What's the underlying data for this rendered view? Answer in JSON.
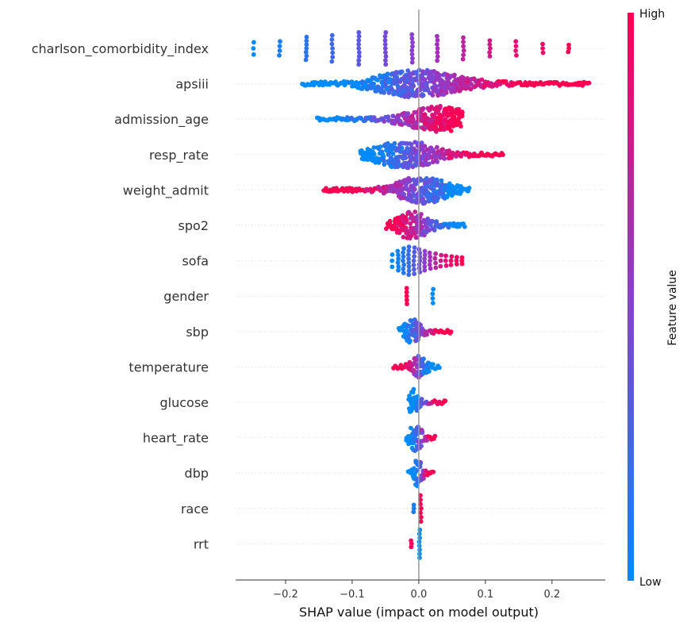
{
  "chart_data": {
    "type": "scatter",
    "subtype": "shap-beeswarm",
    "xlabel": "SHAP value (impact on model output)",
    "xlim": [
      -0.275,
      0.28
    ],
    "xticks": [
      -0.2,
      -0.1,
      0.0,
      0.1,
      0.2
    ],
    "xtick_labels": [
      "−0.2",
      "−0.1",
      "0.0",
      "0.1",
      "0.2"
    ],
    "colorbar": {
      "title": "Feature value",
      "high_label": "High",
      "low_label": "Low",
      "low_color": "#008bfb",
      "high_color": "#ff0052"
    },
    "grid": "horizontal-dotted",
    "features": [
      {
        "name": "charlson_comorbidity_index",
        "kind": "discrete",
        "points": [
          {
            "x": -0.248,
            "v": 0.0,
            "spread": 0.35
          },
          {
            "x": -0.209,
            "v": 0.08,
            "spread": 0.4
          },
          {
            "x": -0.169,
            "v": 0.16,
            "spread": 0.65
          },
          {
            "x": -0.13,
            "v": 0.24,
            "spread": 0.75
          },
          {
            "x": -0.09,
            "v": 0.33,
            "spread": 0.92
          },
          {
            "x": -0.05,
            "v": 0.42,
            "spread": 0.92
          },
          {
            "x": -0.01,
            "v": 0.5,
            "spread": 0.8
          },
          {
            "x": 0.028,
            "v": 0.6,
            "spread": 0.7
          },
          {
            "x": 0.067,
            "v": 0.7,
            "spread": 0.62
          },
          {
            "x": 0.107,
            "v": 0.8,
            "spread": 0.45
          },
          {
            "x": 0.146,
            "v": 0.88,
            "spread": 0.4
          },
          {
            "x": 0.186,
            "v": 0.94,
            "spread": 0.25
          },
          {
            "x": 0.225,
            "v": 1.0,
            "spread": 0.2
          }
        ]
      },
      {
        "name": "apsiii",
        "kind": "continuous",
        "min": -0.175,
        "max": 0.258,
        "peak": 0.0,
        "width": 0.075,
        "height": 0.8,
        "cmin": -0.09,
        "cmax": 0.14
      },
      {
        "name": "admission_age",
        "kind": "continuous",
        "min": -0.152,
        "max": 0.065,
        "peak": 0.03,
        "width": 0.055,
        "height": 0.75,
        "cmin": -0.12,
        "cmax": 0.045
      },
      {
        "name": "resp_rate",
        "kind": "continuous",
        "min": -0.088,
        "max": 0.128,
        "peak": -0.02,
        "width": 0.055,
        "height": 0.8,
        "cmin": -0.06,
        "cmax": 0.08
      },
      {
        "name": "weight_admit",
        "kind": "continuous",
        "min": -0.142,
        "max": 0.078,
        "peak": 0.005,
        "width": 0.045,
        "height": 0.8,
        "cmin": 0.055,
        "cmax": -0.09
      },
      {
        "name": "spo2",
        "kind": "continuous",
        "min": -0.048,
        "max": 0.072,
        "peak": -0.01,
        "width": 0.028,
        "height": 0.8,
        "cmin": 0.05,
        "cmax": -0.03
      },
      {
        "name": "sofa",
        "kind": "discrete",
        "points": [
          {
            "x": -0.04,
            "v": 0.0,
            "spread": 0.35
          },
          {
            "x": -0.031,
            "v": 0.06,
            "spread": 0.55
          },
          {
            "x": -0.023,
            "v": 0.12,
            "spread": 0.7
          },
          {
            "x": -0.015,
            "v": 0.2,
            "spread": 0.8
          },
          {
            "x": -0.007,
            "v": 0.3,
            "spread": 0.75
          },
          {
            "x": 0.001,
            "v": 0.4,
            "spread": 0.65
          },
          {
            "x": 0.009,
            "v": 0.5,
            "spread": 0.55
          },
          {
            "x": 0.017,
            "v": 0.6,
            "spread": 0.45
          },
          {
            "x": 0.025,
            "v": 0.7,
            "spread": 0.4
          },
          {
            "x": 0.033,
            "v": 0.8,
            "spread": 0.32
          },
          {
            "x": 0.041,
            "v": 0.86,
            "spread": 0.28
          },
          {
            "x": 0.049,
            "v": 0.92,
            "spread": 0.24
          },
          {
            "x": 0.057,
            "v": 0.96,
            "spread": 0.2
          },
          {
            "x": 0.065,
            "v": 1.0,
            "spread": 0.18
          }
        ]
      },
      {
        "name": "gender",
        "kind": "discrete",
        "points": [
          {
            "x": -0.018,
            "v": 1.0,
            "spread": 0.45
          },
          {
            "x": 0.021,
            "v": 0.0,
            "spread": 0.4
          }
        ]
      },
      {
        "name": "sbp",
        "kind": "continuous",
        "min": -0.03,
        "max": 0.05,
        "peak": -0.01,
        "width": 0.016,
        "height": 0.75,
        "cmin": -0.02,
        "cmax": 0.03
      },
      {
        "name": "temperature",
        "kind": "continuous",
        "min": -0.038,
        "max": 0.032,
        "peak": 0.0,
        "width": 0.014,
        "height": 0.65,
        "cmin": 0.015,
        "cmax": -0.02
      },
      {
        "name": "glucose",
        "kind": "continuous",
        "min": -0.015,
        "max": 0.042,
        "peak": -0.008,
        "width": 0.009,
        "height": 0.75,
        "cmin": -0.005,
        "cmax": 0.03
      },
      {
        "name": "heart_rate",
        "kind": "continuous",
        "min": -0.018,
        "max": 0.025,
        "peak": -0.005,
        "width": 0.012,
        "height": 0.75,
        "cmin": -0.01,
        "cmax": 0.018
      },
      {
        "name": "dbp",
        "kind": "continuous",
        "min": -0.015,
        "max": 0.022,
        "peak": -0.002,
        "width": 0.009,
        "height": 0.75,
        "cmin": -0.005,
        "cmax": 0.015
      },
      {
        "name": "race",
        "kind": "discrete",
        "points": [
          {
            "x": -0.008,
            "v": 0.1,
            "spread": 0.2
          },
          {
            "x": 0.003,
            "v": 1.0,
            "spread": 0.75
          }
        ]
      },
      {
        "name": "rrt",
        "kind": "discrete",
        "points": [
          {
            "x": -0.011,
            "v": 0.95,
            "spread": 0.18
          },
          {
            "x": 0.001,
            "v": 0.0,
            "spread": 0.8
          }
        ]
      }
    ]
  }
}
